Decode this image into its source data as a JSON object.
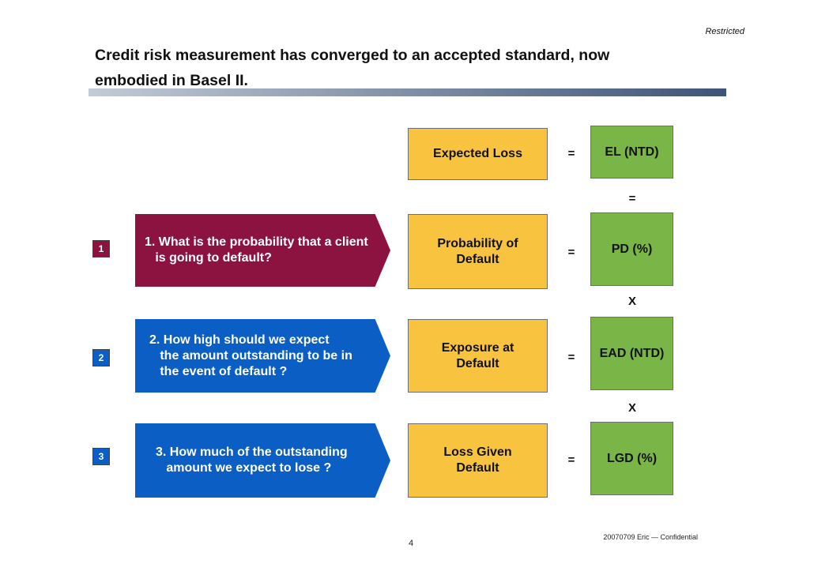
{
  "header": {
    "restricted": "Restricted",
    "title_line1": "Credit risk measurement has converged to an accepted standard, now",
    "title_line2": "embodied in Basel II."
  },
  "colors": {
    "maroon": "#8c1240",
    "blue": "#0a5ec4",
    "yellow": "#f8c33f",
    "green": "#7ab548"
  },
  "rows": [
    {
      "definition": "Expected Loss",
      "equals": "=",
      "metric": "EL (NTD)",
      "operator_below": "="
    },
    {
      "badge": "1",
      "question": "1. What is the probability that a client\n   is going to default?",
      "definition": "Probability of\nDefault",
      "equals": "=",
      "metric": "PD (%)",
      "operator_below": "X"
    },
    {
      "badge": "2",
      "question": "2. How high should we expect\n   the amount outstanding to be in\n   the event of default ?",
      "definition": "Exposure at\nDefault",
      "equals": "=",
      "metric": "EAD (NTD)",
      "operator_below": "X"
    },
    {
      "badge": "3",
      "question": "3. How much of the outstanding\n   amount we expect to lose ?",
      "definition": "Loss Given\nDefault",
      "equals": "=",
      "metric": "LGD (%)"
    }
  ],
  "footer": {
    "note": "20070709 Eric — Confidential",
    "page": "4"
  }
}
